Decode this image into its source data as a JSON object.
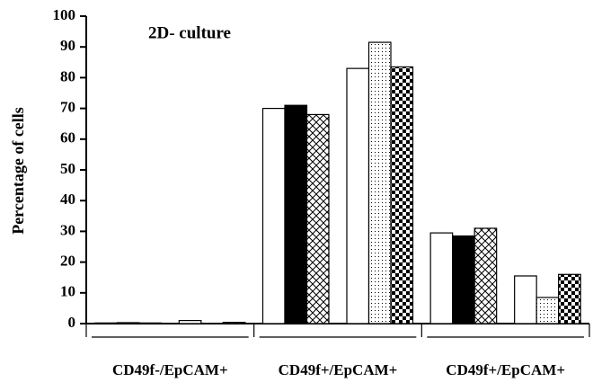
{
  "chart_data": {
    "type": "bar",
    "title": "2D- culture",
    "y_label": "Percentage of cells",
    "categories": [
      "CD49f-/EpCAM+",
      "CD49f+/EpCAM+",
      "CD49f+/EpCAM+"
    ],
    "series": [
      {
        "color": "#000000",
        "pattern": "none",
        "values": [
          0.2,
          70,
          29.5
        ]
      },
      {
        "color": "#000000",
        "pattern": "solid",
        "values": [
          0.3,
          71,
          28.5
        ]
      },
      {
        "color": "#000000",
        "pattern": "crosshatch",
        "values": [
          0.2,
          68,
          31
        ]
      },
      {
        "color": "#000000",
        "pattern": "none",
        "values": [
          1.0,
          83,
          15.5
        ]
      },
      {
        "color": "#000000",
        "pattern": "dots",
        "values": [
          0,
          91.5,
          8.5
        ]
      },
      {
        "color": "#000000",
        "pattern": "checker",
        "values": [
          0.4,
          83.5,
          16
        ]
      }
    ],
    "ylim": [
      0,
      100
    ],
    "yticks": [
      0,
      10,
      20,
      30,
      40,
      50,
      60,
      70,
      80,
      90,
      100
    ],
    "grid": false
  }
}
